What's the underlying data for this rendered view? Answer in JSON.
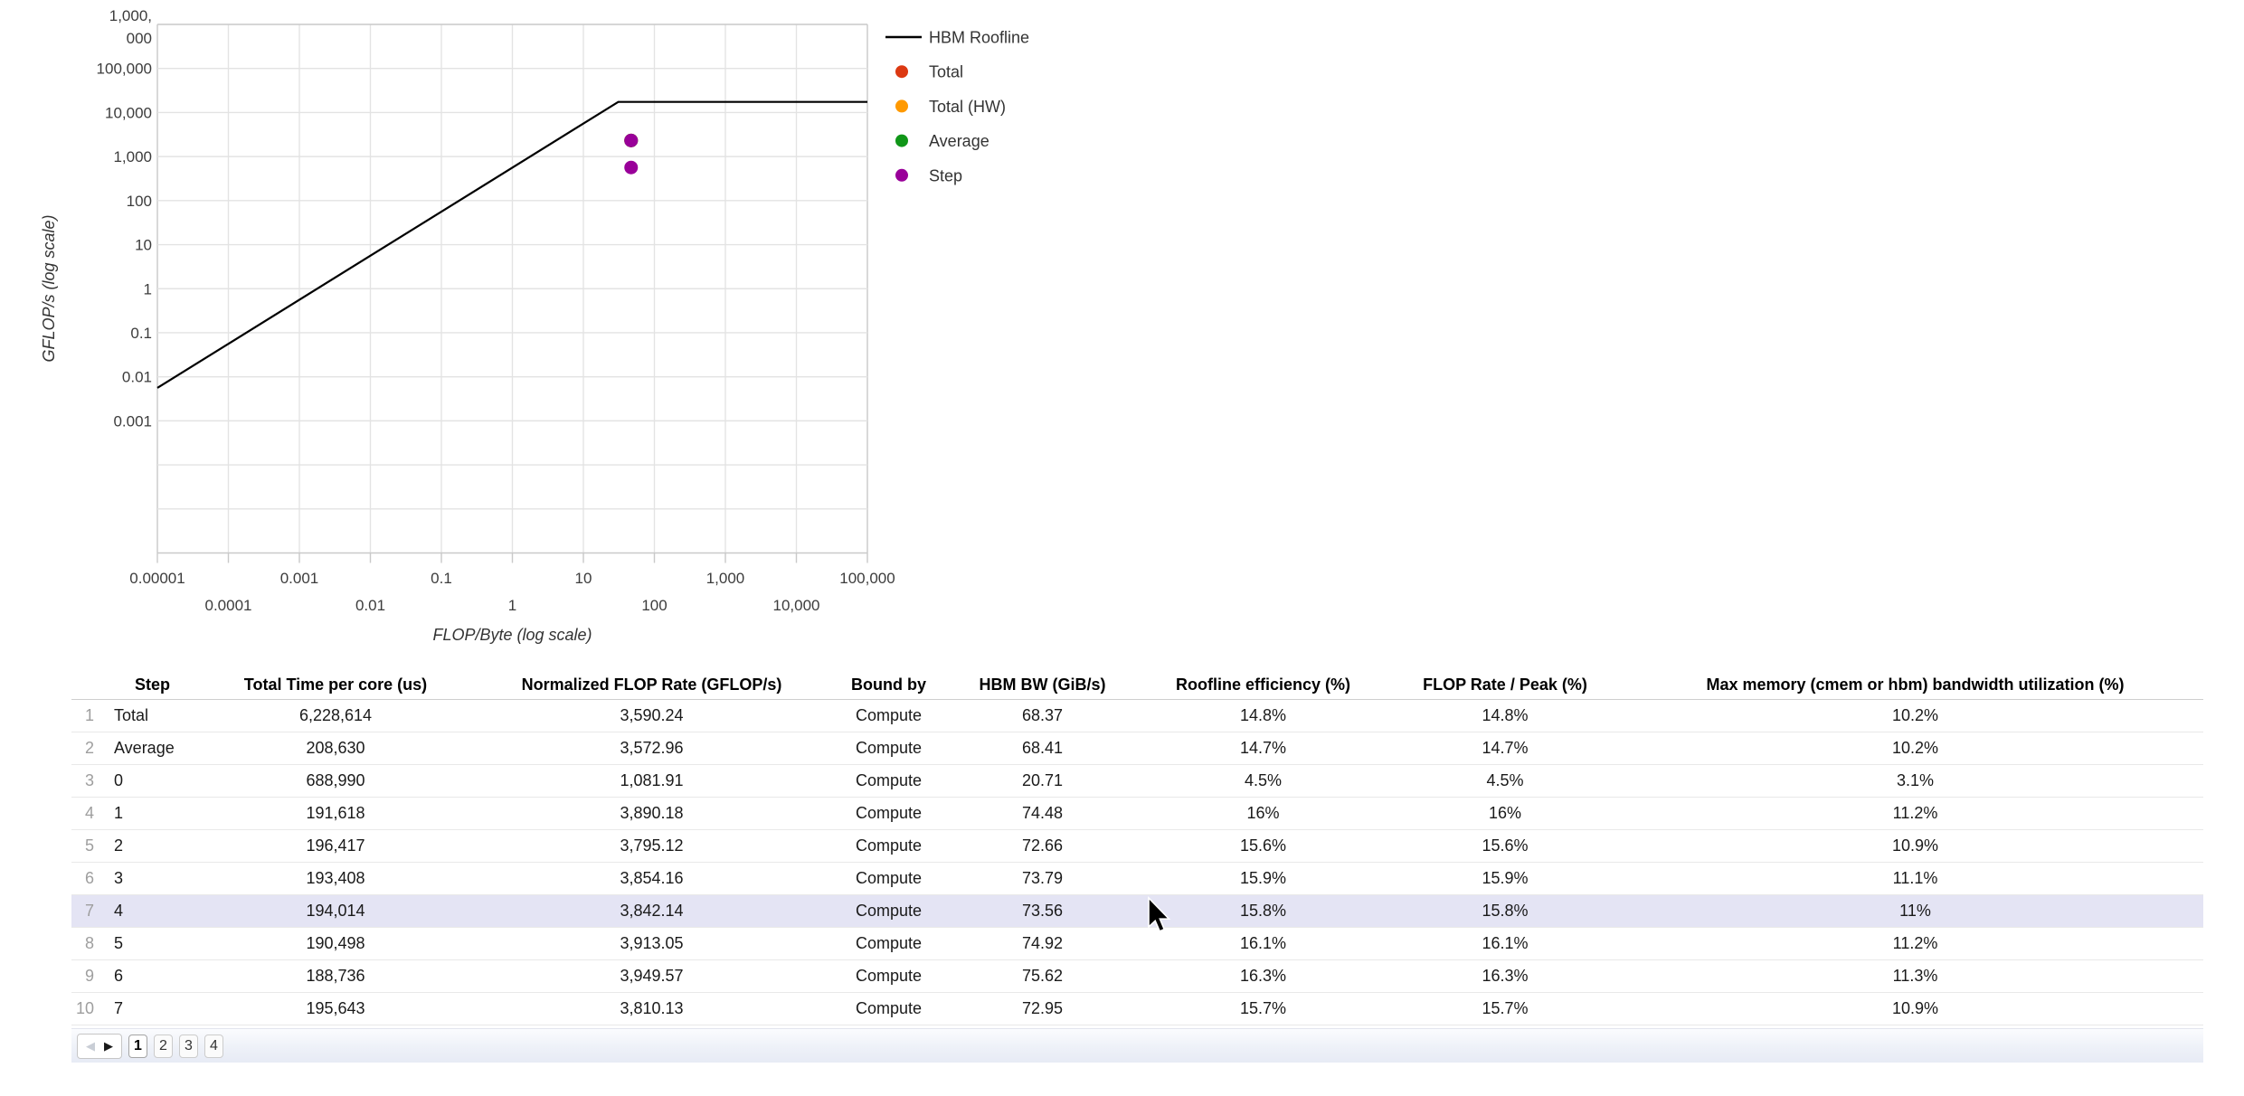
{
  "chart_data": {
    "type": "scatter",
    "title": "",
    "xlabel": "FLOP/Byte (log scale)",
    "ylabel": "GFLOP/s (log scale)",
    "x_scale": "log",
    "y_scale": "log",
    "xlim": [
      1e-05,
      100000
    ],
    "ylim": [
      1e-06,
      1000000
    ],
    "grid": true,
    "legend_position": "right",
    "x_ticks": [
      {
        "value": 1e-05,
        "label": "0.00001",
        "row": 0
      },
      {
        "value": 0.0001,
        "label": "0.0001",
        "row": 1
      },
      {
        "value": 0.001,
        "label": "0.001",
        "row": 0
      },
      {
        "value": 0.01,
        "label": "0.01",
        "row": 1
      },
      {
        "value": 0.1,
        "label": "0.1",
        "row": 0
      },
      {
        "value": 1,
        "label": "1",
        "row": 1
      },
      {
        "value": 10,
        "label": "10",
        "row": 0
      },
      {
        "value": 100,
        "label": "100",
        "row": 1
      },
      {
        "value": 1000,
        "label": "1,000",
        "row": 0
      },
      {
        "value": 10000,
        "label": "10,000",
        "row": 1
      },
      {
        "value": 100000,
        "label": "100,000",
        "row": 0
      }
    ],
    "y_ticks": [
      {
        "value": 1000000,
        "label_lines": [
          "1,000,",
          "000"
        ]
      },
      {
        "value": 100000,
        "label": "100,000"
      },
      {
        "value": 10000,
        "label": "10,000"
      },
      {
        "value": 1000,
        "label": "1,000"
      },
      {
        "value": 100,
        "label": "100"
      },
      {
        "value": 10,
        "label": "10"
      },
      {
        "value": 1,
        "label": "1"
      },
      {
        "value": 0.1,
        "label": "0.1"
      },
      {
        "value": 0.01,
        "label": "0.01"
      },
      {
        "value": 0.001,
        "label": "0.001"
      }
    ],
    "series": [
      {
        "name": "HBM Roofline",
        "type": "line",
        "color": "#000000",
        "points": [
          [
            1e-05,
            0.0056
          ],
          [
            31,
            17400
          ],
          [
            100000,
            17400
          ]
        ]
      },
      {
        "name": "Total",
        "type": "scatter",
        "color": "#dc3912",
        "points": [
          [
            47,
            2320
          ]
        ]
      },
      {
        "name": "Total (HW)",
        "type": "scatter",
        "color": "#ff9900",
        "points": [
          [
            47,
            2320
          ]
        ]
      },
      {
        "name": "Average",
        "type": "scatter",
        "color": "#109618",
        "points": [
          [
            47,
            2320
          ]
        ]
      },
      {
        "name": "Step",
        "type": "scatter",
        "color": "#990099",
        "points": [
          [
            47,
            2320
          ],
          [
            47,
            565
          ]
        ]
      }
    ]
  },
  "table": {
    "headers": [
      "Step",
      "Total Time per core (us)",
      "Normalized FLOP Rate (GFLOP/s)",
      "Bound by",
      "HBM BW (GiB/s)",
      "Roofline efficiency (%)",
      "FLOP Rate / Peak (%)",
      "Max memory (cmem or hbm) bandwidth utilization (%)"
    ],
    "rows": [
      {
        "num": "1",
        "cells": [
          "Total",
          "6,228,614",
          "3,590.24",
          "Compute",
          "68.37",
          "14.8%",
          "14.8%",
          "10.2%"
        ]
      },
      {
        "num": "2",
        "cells": [
          "Average",
          "208,630",
          "3,572.96",
          "Compute",
          "68.41",
          "14.7%",
          "14.7%",
          "10.2%"
        ]
      },
      {
        "num": "3",
        "cells": [
          "0",
          "688,990",
          "1,081.91",
          "Compute",
          "20.71",
          "4.5%",
          "4.5%",
          "3.1%"
        ]
      },
      {
        "num": "4",
        "cells": [
          "1",
          "191,618",
          "3,890.18",
          "Compute",
          "74.48",
          "16%",
          "16%",
          "11.2%"
        ]
      },
      {
        "num": "5",
        "cells": [
          "2",
          "196,417",
          "3,795.12",
          "Compute",
          "72.66",
          "15.6%",
          "15.6%",
          "10.9%"
        ]
      },
      {
        "num": "6",
        "cells": [
          "3",
          "193,408",
          "3,854.16",
          "Compute",
          "73.79",
          "15.9%",
          "15.9%",
          "11.1%"
        ]
      },
      {
        "num": "7",
        "cells": [
          "4",
          "194,014",
          "3,842.14",
          "Compute",
          "73.56",
          "15.8%",
          "15.8%",
          "11%"
        ],
        "selected": true
      },
      {
        "num": "8",
        "cells": [
          "5",
          "190,498",
          "3,913.05",
          "Compute",
          "74.92",
          "16.1%",
          "16.1%",
          "11.2%"
        ]
      },
      {
        "num": "9",
        "cells": [
          "6",
          "188,736",
          "3,949.57",
          "Compute",
          "75.62",
          "16.3%",
          "16.3%",
          "11.3%"
        ]
      },
      {
        "num": "10",
        "cells": [
          "7",
          "195,643",
          "3,810.13",
          "Compute",
          "72.95",
          "15.7%",
          "15.7%",
          "10.9%"
        ]
      }
    ],
    "selected_row_number": "7"
  },
  "pagination": {
    "prev_label": "◀",
    "next_label": "▶",
    "pages": [
      "1",
      "2",
      "3",
      "4"
    ],
    "active_page": "1"
  },
  "colors": {
    "selected_row": "#e4e4f4",
    "roofline": "#000000",
    "total": "#dc3912",
    "total_hw": "#ff9900",
    "average": "#109618",
    "step": "#990099"
  }
}
